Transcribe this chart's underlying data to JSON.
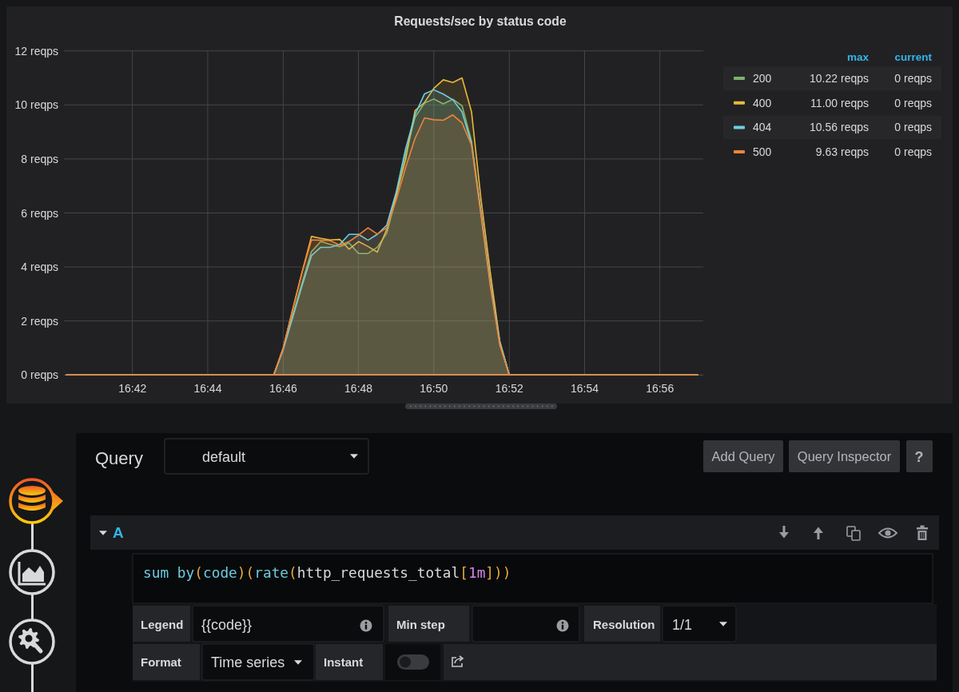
{
  "chart_data": [
    {
      "type": "area",
      "title": "Requests/sec by status code",
      "x": [
        16.6708,
        16.7625,
        16.7667,
        16.7708,
        16.775,
        16.7792,
        16.7833,
        16.7875,
        16.7917,
        16.7958,
        16.8,
        16.8042,
        16.8083,
        16.8125,
        16.8167,
        16.8208,
        16.825,
        16.8292,
        16.8333,
        16.8375,
        16.8417,
        16.8458,
        16.85,
        16.8542,
        16.8583,
        16.8625,
        16.8667,
        16.95
      ],
      "series": [
        {
          "name": "200",
          "color": "#7eb26d",
          "values": [
            0,
            0,
            0.95,
            2.2,
            3.4,
            4.57,
            4.94,
            4.84,
            4.75,
            4.89,
            4.5,
            4.5,
            4.73,
            5.25,
            6.59,
            8.17,
            9.54,
            10.07,
            10.22,
            10.04,
            10.21,
            9.97,
            8.66,
            6.0,
            3.4,
            1.2,
            0,
            0
          ]
        },
        {
          "name": "400",
          "color": "#eab839",
          "values": [
            0,
            0,
            1.0,
            2.4,
            3.8,
            5.13,
            5.06,
            5.0,
            5.02,
            4.66,
            4.94,
            4.76,
            4.55,
            5.4,
            6.69,
            7.97,
            9.79,
            10.09,
            10.61,
            10.93,
            10.83,
            11.0,
            9.74,
            6.5,
            3.8,
            1.25,
            0,
            0
          ]
        },
        {
          "name": "404",
          "color": "#6ed0e0",
          "values": [
            0,
            0,
            0.95,
            2.1,
            3.3,
            4.42,
            4.73,
            4.73,
            4.83,
            5.21,
            5.21,
            4.99,
            5.21,
            5.55,
            6.78,
            8.36,
            9.64,
            10.41,
            10.56,
            10.4,
            10.19,
            9.74,
            8.56,
            6.0,
            3.4,
            1.2,
            0,
            0
          ]
        },
        {
          "name": "500",
          "color": "#ef843c",
          "values": [
            0,
            0,
            1.0,
            2.4,
            3.8,
            5.0,
            4.99,
            4.97,
            4.81,
            4.94,
            5.18,
            5.45,
            5.22,
            5.45,
            6.49,
            7.67,
            8.76,
            9.52,
            9.45,
            9.43,
            9.63,
            9.33,
            8.51,
            5.9,
            3.3,
            1.1,
            0,
            0
          ]
        }
      ],
      "xlim": [
        16.6697,
        16.9525
      ],
      "xticks": [
        {
          "value": 16.7,
          "label": "16:42"
        },
        {
          "value": 16.7333,
          "label": "16:44"
        },
        {
          "value": 16.7667,
          "label": "16:46"
        },
        {
          "value": 16.8,
          "label": "16:48"
        },
        {
          "value": 16.8333,
          "label": "16:50"
        },
        {
          "value": 16.8667,
          "label": "16:52"
        },
        {
          "value": 16.9,
          "label": "16:54"
        },
        {
          "value": 16.9333,
          "label": "16:56"
        }
      ],
      "ylim": [
        0,
        12
      ],
      "yticks": [
        {
          "value": 0,
          "label": "0 reqps"
        },
        {
          "value": 2,
          "label": "2 reqps"
        },
        {
          "value": 4,
          "label": "4 reqps"
        },
        {
          "value": 6,
          "label": "6 reqps"
        },
        {
          "value": 8,
          "label": "8 reqps"
        },
        {
          "value": 10,
          "label": "10 reqps"
        },
        {
          "value": 12,
          "label": "12 reqps"
        }
      ],
      "grid": true,
      "legend": "right",
      "annotations": [
        "max",
        "current",
        "10.22 reqps",
        "0 reqps",
        "11.00 reqps",
        "0 reqps",
        "10.56 reqps",
        "0 reqps",
        "9.63 reqps",
        "0 reqps"
      ]
    },
    {
      "type": "other",
      "annotations": [
        "Query",
        "default",
        "Add Query",
        "Query Inspector",
        "?",
        "A",
        "sum by(code)(rate(http_requests_total[1m]))",
        "Legend",
        "{{code}}",
        "Min step",
        "Resolution",
        "1/1",
        "Format",
        "Time series",
        "Instant"
      ]
    }
  ]
}
